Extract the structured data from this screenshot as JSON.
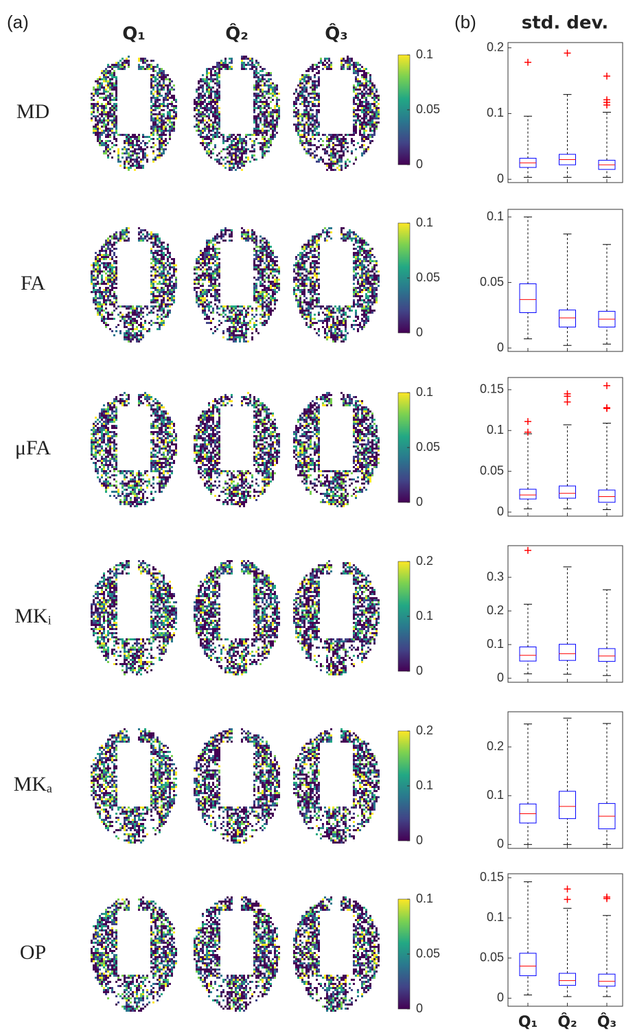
{
  "panel_labels": [
    "(a)",
    "(b)"
  ],
  "column_headers": [
    "Q₁",
    "Q̂₂",
    "Q̂₃"
  ],
  "box_title": "std. dev.",
  "box_categories": [
    "Q₁",
    "Q̂₂",
    "Q̂₃"
  ],
  "chart_data": [
    {
      "type": "box",
      "row_label": "MD",
      "colorbar_lim": [
        0,
        0.1
      ],
      "colorbar_ticks": [
        0,
        0.05,
        0.1
      ],
      "ylim": [
        -0.005,
        0.208
      ],
      "yticks": [
        0,
        0.1,
        0.2
      ],
      "box_color": "#0000ff",
      "median_color": "#ff0000",
      "outlier_color": "#ff0000",
      "boxes": [
        {
          "low": 0.003,
          "q1": 0.018,
          "median": 0.025,
          "q3": 0.032,
          "high": 0.096,
          "outliers": [
            0.178
          ]
        },
        {
          "low": 0.003,
          "q1": 0.022,
          "median": 0.03,
          "q3": 0.038,
          "high": 0.129,
          "outliers": [
            0.192
          ]
        },
        {
          "low": 0.003,
          "q1": 0.015,
          "median": 0.022,
          "q3": 0.029,
          "high": 0.102,
          "outliers": [
            0.157,
            0.121,
            0.117,
            0.113
          ]
        }
      ]
    },
    {
      "type": "box",
      "row_label": "FA",
      "colorbar_lim": [
        0,
        0.1
      ],
      "colorbar_ticks": [
        0,
        0.05,
        0.1
      ],
      "ylim": [
        -0.0026,
        0.1058
      ],
      "yticks": [
        0,
        0.05,
        0.1
      ],
      "box_color": "#0000ff",
      "median_color": "#ff0000",
      "outlier_color": "#ff0000",
      "boxes": [
        {
          "low": 0.007,
          "q1": 0.027,
          "median": 0.037,
          "q3": 0.049,
          "high": 0.1,
          "outliers": []
        },
        {
          "low": 0.002,
          "q1": 0.016,
          "median": 0.023,
          "q3": 0.029,
          "high": 0.087,
          "outliers": []
        },
        {
          "low": 0.003,
          "q1": 0.016,
          "median": 0.022,
          "q3": 0.028,
          "high": 0.079,
          "outliers": []
        }
      ]
    },
    {
      "type": "box",
      "row_label": "μFA",
      "colorbar_lim": [
        0,
        0.1
      ],
      "colorbar_ticks": [
        0,
        0.05,
        0.1
      ],
      "ylim": [
        -0.005,
        0.165
      ],
      "yticks": [
        0,
        0.05,
        0.1,
        0.15
      ],
      "box_color": "#0000ff",
      "median_color": "#ff0000",
      "outlier_color": "#ff0000",
      "boxes": [
        {
          "low": 0.004,
          "q1": 0.016,
          "median": 0.021,
          "q3": 0.028,
          "high": 0.096,
          "outliers": [
            0.111,
            0.098
          ]
        },
        {
          "low": 0.004,
          "q1": 0.017,
          "median": 0.023,
          "q3": 0.032,
          "high": 0.107,
          "outliers": [
            0.145,
            0.142,
            0.135
          ]
        },
        {
          "low": 0.003,
          "q1": 0.012,
          "median": 0.019,
          "q3": 0.027,
          "high": 0.109,
          "outliers": [
            0.155,
            0.128,
            0.127
          ]
        }
      ]
    },
    {
      "type": "box",
      "row_label": "MKᵢ",
      "colorbar_lim": [
        0,
        0.2
      ],
      "colorbar_ticks": [
        0,
        0.1,
        0.2
      ],
      "ylim": [
        -0.012,
        0.394
      ],
      "yticks": [
        0,
        0.1,
        0.2,
        0.3
      ],
      "box_color": "#0000ff",
      "median_color": "#ff0000",
      "outlier_color": "#ff0000",
      "boxes": [
        {
          "low": 0.013,
          "q1": 0.051,
          "median": 0.068,
          "q3": 0.093,
          "high": 0.22,
          "outliers": [
            0.38
          ]
        },
        {
          "low": 0.012,
          "q1": 0.053,
          "median": 0.073,
          "q3": 0.101,
          "high": 0.331,
          "outliers": []
        },
        {
          "low": 0.008,
          "q1": 0.05,
          "median": 0.066,
          "q3": 0.088,
          "high": 0.263,
          "outliers": []
        }
      ]
    },
    {
      "type": "box",
      "row_label": "MKₐ",
      "colorbar_lim": [
        0,
        0.2
      ],
      "colorbar_ticks": [
        0,
        0.1,
        0.2
      ],
      "ylim": [
        -0.008,
        0.272
      ],
      "yticks": [
        0,
        0.1,
        0.2
      ],
      "box_color": "#0000ff",
      "median_color": "#ff0000",
      "outlier_color": "#ff0000",
      "boxes": [
        {
          "low": 0,
          "q1": 0.044,
          "median": 0.063,
          "q3": 0.083,
          "high": 0.247,
          "outliers": []
        },
        {
          "low": 0,
          "q1": 0.053,
          "median": 0.078,
          "q3": 0.109,
          "high": 0.259,
          "outliers": []
        },
        {
          "low": 0,
          "q1": 0.032,
          "median": 0.058,
          "q3": 0.084,
          "high": 0.248,
          "outliers": []
        }
      ]
    },
    {
      "type": "box",
      "row_label": "OP",
      "colorbar_lim": [
        0,
        0.1
      ],
      "colorbar_ticks": [
        0,
        0.05,
        0.1
      ],
      "ylim": [
        -0.01,
        0.155
      ],
      "yticks": [
        0,
        0.05,
        0.1,
        0.15
      ],
      "box_color": "#0000ff",
      "median_color": "#ff0000",
      "outlier_color": "#ff0000",
      "boxes": [
        {
          "low": 0.004,
          "q1": 0.028,
          "median": 0.04,
          "q3": 0.056,
          "high": 0.145,
          "outliers": []
        },
        {
          "low": 0.002,
          "q1": 0.016,
          "median": 0.022,
          "q3": 0.031,
          "high": 0.112,
          "outliers": [
            0.136,
            0.123
          ]
        },
        {
          "low": 0.002,
          "q1": 0.015,
          "median": 0.021,
          "q3": 0.03,
          "high": 0.103,
          "outliers": [
            0.126,
            0.124
          ]
        }
      ]
    }
  ]
}
